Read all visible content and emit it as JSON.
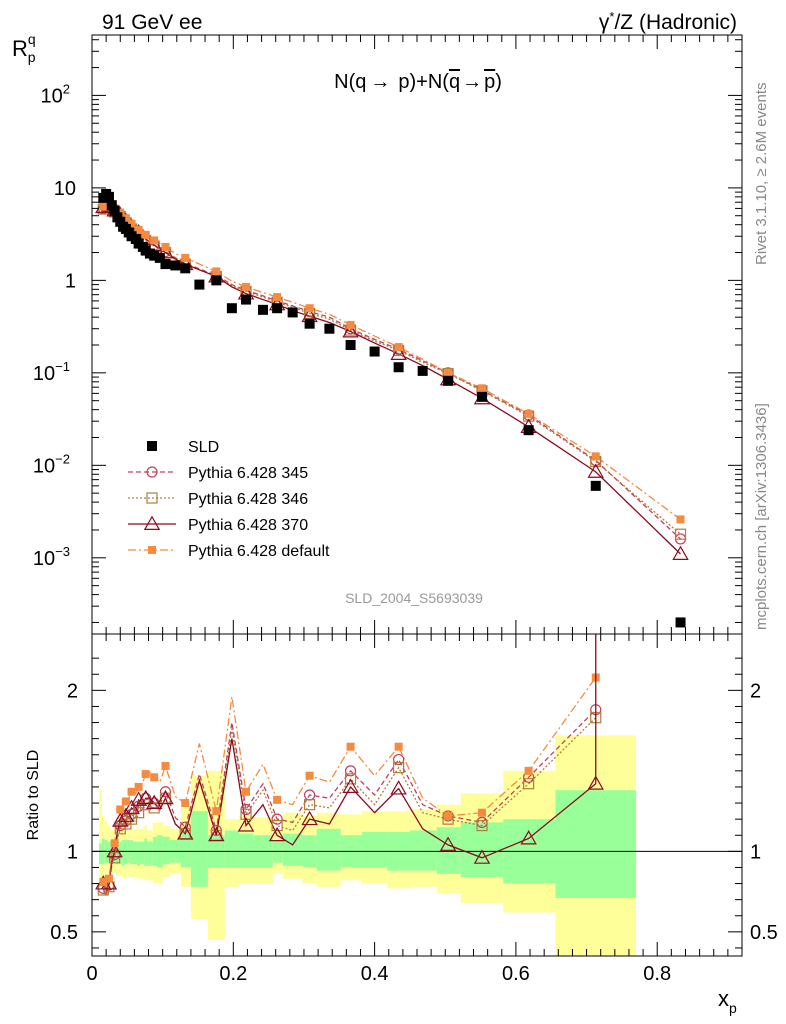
{
  "header": {
    "left": "91 GeV ee",
    "right_gamma": "γ",
    "right_star": "*",
    "right_rest": "/Z (Hadronic)"
  },
  "side_labels": {
    "rivet": "Rivet 3.1.10, ≥ 2.6M events",
    "mcplots": "mcplots.cern.ch [arXiv:1306.3436]"
  },
  "chart_data": [
    {
      "type": "scatter",
      "title": "N(q → p)+N(q̄ → p̄)",
      "title_parts": {
        "a": "N(q",
        "arrow1": "→",
        "b": "p)+N(",
        "qbar": "q",
        "arrow2": "→",
        "pbar": "p",
        "close": ")"
      },
      "ylabel_main": "R",
      "ylabel_sup": "q",
      "ylabel_sub": "p",
      "xlabel_main": "x",
      "xlabel_sub": "p",
      "yscale": "log",
      "ylim": [
        0.00015,
        450
      ],
      "xlim": [
        0,
        0.92
      ],
      "y_tick_labels": [
        {
          "value": 100,
          "base": "10",
          "exp": "2"
        },
        {
          "value": 10,
          "base": "10",
          "exp": ""
        },
        {
          "value": 1,
          "base": "1",
          "exp": ""
        },
        {
          "value": 0.1,
          "base": "10",
          "exp": "−1"
        },
        {
          "value": 0.01,
          "base": "10",
          "exp": "−2"
        },
        {
          "value": 0.001,
          "base": "10",
          "exp": "−3"
        }
      ],
      "watermark": "SLD_2004_S5693039",
      "legend": [
        "SLD",
        "Pythia 6.428 345",
        "Pythia 6.428 346",
        "Pythia 6.428 370",
        "Pythia 6.428 default"
      ],
      "x": [
        0.016,
        0.02,
        0.024,
        0.028,
        0.032,
        0.036,
        0.04,
        0.044,
        0.048,
        0.052,
        0.056,
        0.062,
        0.066,
        0.072,
        0.076,
        0.082,
        0.088,
        0.096,
        0.104,
        0.118,
        0.132,
        0.152,
        0.176,
        0.198,
        0.218,
        0.242,
        0.262,
        0.284,
        0.308,
        0.336,
        0.366,
        0.4,
        0.434,
        0.468,
        0.504,
        0.552,
        0.618,
        0.713,
        0.833
      ],
      "series": [
        {
          "name": "SLD",
          "values": [
            7.8,
            8.6,
            8.0,
            6.5,
            5.7,
            4.8,
            4.3,
            3.8,
            3.6,
            3.3,
            3.0,
            2.8,
            2.5,
            2.3,
            2.1,
            1.95,
            1.85,
            1.75,
            1.5,
            1.45,
            1.35,
            0.9,
            1.0,
            0.5,
            0.62,
            0.48,
            0.5,
            0.45,
            0.34,
            0.3,
            0.2,
            0.17,
            0.115,
            0.105,
            0.082,
            0.055,
            0.024,
            0.006,
            0.0002
          ]
        },
        {
          "name": "Pythia 6.428 345",
          "values": [
            6.0,
            6.3,
            6.3,
            6.0,
            5.6,
            5.3,
            5.0,
            4.6,
            4.3,
            4.0,
            3.7,
            3.4,
            3.2,
            3.0,
            2.8,
            2.6,
            2.4,
            2.25,
            2.05,
            1.75,
            1.55,
            1.33,
            1.13,
            0.9,
            0.78,
            0.68,
            0.6,
            0.53,
            0.46,
            0.4,
            0.3,
            0.23,
            0.18,
            0.135,
            0.1,
            0.065,
            0.035,
            0.0113,
            0.0016
          ]
        },
        {
          "name": "Pythia 6.428 346",
          "values": [
            5.9,
            6.2,
            6.2,
            5.9,
            5.5,
            5.2,
            4.9,
            4.5,
            4.2,
            3.9,
            3.6,
            3.3,
            3.1,
            2.9,
            2.7,
            2.5,
            2.35,
            2.2,
            2.0,
            1.7,
            1.5,
            1.3,
            1.1,
            0.88,
            0.76,
            0.66,
            0.58,
            0.51,
            0.44,
            0.38,
            0.29,
            0.22,
            0.175,
            0.13,
            0.098,
            0.064,
            0.034,
            0.011,
            0.0018
          ]
        },
        {
          "name": "Pythia 6.428 370",
          "values": [
            6.2,
            6.5,
            6.4,
            6.1,
            5.7,
            5.4,
            5.1,
            4.7,
            4.4,
            4.1,
            3.8,
            3.5,
            3.3,
            3.0,
            2.8,
            2.6,
            2.4,
            2.2,
            2.0,
            1.7,
            1.5,
            1.3,
            1.1,
            0.85,
            0.72,
            0.62,
            0.55,
            0.47,
            0.41,
            0.35,
            0.28,
            0.21,
            0.16,
            0.12,
            0.085,
            0.053,
            0.026,
            0.0085,
            0.0011
          ]
        },
        {
          "name": "Pythia 6.428 default",
          "values": [
            6.3,
            6.7,
            6.6,
            6.4,
            6.0,
            5.7,
            5.4,
            5.0,
            4.7,
            4.4,
            4.1,
            3.8,
            3.5,
            3.3,
            3.1,
            2.9,
            2.7,
            2.5,
            2.3,
            1.95,
            1.75,
            1.5,
            1.25,
            0.98,
            0.85,
            0.74,
            0.66,
            0.58,
            0.5,
            0.43,
            0.33,
            0.25,
            0.19,
            0.14,
            0.1,
            0.068,
            0.036,
            0.0125,
            0.0026
          ]
        }
      ]
    },
    {
      "type": "line",
      "ylabel": "Ratio to SLD",
      "xlim": [
        0,
        0.92
      ],
      "ylim": [
        0.35,
        2.35
      ],
      "y_ticks": [
        0.5,
        1,
        2
      ],
      "y_tick_labels": [
        "0.5",
        "1",
        "2"
      ],
      "x_ticks": [
        0,
        0.2,
        0.4,
        0.6,
        0.8
      ],
      "x_tick_labels": [
        "0",
        "0.2",
        "0.4",
        "0.6",
        "0.8"
      ],
      "band_edges": [
        0.01,
        0.014,
        0.018,
        0.022,
        0.026,
        0.03,
        0.034,
        0.038,
        0.042,
        0.046,
        0.05,
        0.054,
        0.058,
        0.064,
        0.068,
        0.074,
        0.078,
        0.086,
        0.092,
        0.1,
        0.11,
        0.126,
        0.14,
        0.164,
        0.188,
        0.208,
        0.228,
        0.256,
        0.27,
        0.298,
        0.318,
        0.352,
        0.382,
        0.418,
        0.45,
        0.488,
        0.522,
        0.582,
        0.656,
        0.77
      ],
      "band_inner": [
        [
          0.92,
          1.05
        ],
        [
          0.92,
          1.08
        ],
        [
          0.93,
          1.07
        ],
        [
          0.93,
          1.06
        ],
        [
          0.92,
          1.06
        ],
        [
          0.93,
          1.05
        ],
        [
          0.92,
          1.08
        ],
        [
          0.92,
          1.06
        ],
        [
          0.91,
          1.07
        ],
        [
          0.92,
          1.07
        ],
        [
          0.93,
          1.07
        ],
        [
          0.92,
          1.07
        ],
        [
          0.92,
          1.06
        ],
        [
          0.91,
          1.06
        ],
        [
          0.92,
          1.06
        ],
        [
          0.91,
          1.08
        ],
        [
          0.91,
          1.06
        ],
        [
          0.91,
          1.09
        ],
        [
          0.9,
          1.1
        ],
        [
          0.92,
          1.09
        ],
        [
          0.93,
          1.07
        ],
        [
          0.9,
          1.13
        ],
        [
          0.78,
          1.25
        ],
        [
          0.9,
          1.1
        ],
        [
          0.9,
          1.13
        ],
        [
          0.9,
          1.11
        ],
        [
          0.9,
          1.1
        ],
        [
          0.93,
          1.07
        ],
        [
          0.91,
          1.11
        ],
        [
          0.9,
          1.1
        ],
        [
          0.88,
          1.14
        ],
        [
          0.9,
          1.1
        ],
        [
          0.9,
          1.12
        ],
        [
          0.88,
          1.12
        ],
        [
          0.88,
          1.13
        ],
        [
          0.86,
          1.15
        ],
        [
          0.84,
          1.18
        ],
        [
          0.8,
          1.2
        ],
        [
          0.71,
          1.38
        ]
      ],
      "band_outer": [
        [
          0.83,
          1.38
        ],
        [
          0.84,
          1.22
        ],
        [
          0.85,
          1.19
        ],
        [
          0.87,
          1.16
        ],
        [
          0.86,
          1.14
        ],
        [
          0.87,
          1.13
        ],
        [
          0.85,
          1.14
        ],
        [
          0.85,
          1.13
        ],
        [
          0.84,
          1.16
        ],
        [
          0.83,
          1.13
        ],
        [
          0.85,
          1.13
        ],
        [
          0.84,
          1.14
        ],
        [
          0.84,
          1.14
        ],
        [
          0.83,
          1.15
        ],
        [
          0.83,
          1.14
        ],
        [
          0.82,
          1.16
        ],
        [
          0.82,
          1.13
        ],
        [
          0.8,
          1.18
        ],
        [
          0.8,
          1.18
        ],
        [
          0.84,
          1.16
        ],
        [
          0.86,
          1.14
        ],
        [
          0.78,
          1.28
        ],
        [
          0.58,
          1.47
        ],
        [
          0.45,
          1.5
        ],
        [
          0.78,
          1.2
        ],
        [
          0.8,
          1.22
        ],
        [
          0.8,
          1.21
        ],
        [
          0.86,
          1.13
        ],
        [
          0.83,
          1.24
        ],
        [
          0.8,
          1.22
        ],
        [
          0.78,
          1.24
        ],
        [
          0.82,
          1.23
        ],
        [
          0.8,
          1.25
        ],
        [
          0.77,
          1.25
        ],
        [
          0.78,
          1.26
        ],
        [
          0.74,
          1.29
        ],
        [
          0.68,
          1.36
        ],
        [
          0.62,
          1.5
        ],
        [
          0.35,
          1.72
        ]
      ],
      "ratio_x": [
        0.016,
        0.02,
        0.024,
        0.028,
        0.032,
        0.036,
        0.04,
        0.044,
        0.048,
        0.052,
        0.056,
        0.062,
        0.066,
        0.072,
        0.076,
        0.082,
        0.088,
        0.096,
        0.104,
        0.118,
        0.132,
        0.152,
        0.176,
        0.198,
        0.218,
        0.242,
        0.262,
        0.284,
        0.308,
        0.336,
        0.366,
        0.4,
        0.434,
        0.468,
        0.504,
        0.552,
        0.618,
        0.713
      ],
      "series": [
        {
          "name": "Pythia 6.428 345",
          "values": [
            0.77,
            0.73,
            0.79,
            0.92,
            0.98,
            1.1,
            1.16,
            1.21,
            1.19,
            1.21,
            1.23,
            1.21,
            1.28,
            1.3,
            1.33,
            1.33,
            1.3,
            1.29,
            1.37,
            1.21,
            1.15,
            1.48,
            1.13,
            1.8,
            1.26,
            1.42,
            1.2,
            1.18,
            1.35,
            1.33,
            1.5,
            1.35,
            1.57,
            1.29,
            1.22,
            1.18,
            1.46,
            1.88
          ]
        },
        {
          "name": "Pythia 6.428 346",
          "values": [
            0.76,
            0.72,
            0.78,
            0.91,
            0.96,
            1.08,
            1.14,
            1.18,
            1.17,
            1.18,
            1.2,
            1.18,
            1.24,
            1.26,
            1.29,
            1.28,
            1.27,
            1.26,
            1.33,
            1.17,
            1.11,
            1.44,
            1.1,
            1.76,
            1.23,
            1.38,
            1.16,
            1.13,
            1.29,
            1.27,
            1.45,
            1.29,
            1.52,
            1.24,
            1.2,
            1.16,
            1.42,
            1.83
          ]
        },
        {
          "name": "Pythia 6.428 370",
          "values": [
            0.8,
            0.76,
            0.8,
            0.94,
            1.0,
            1.13,
            1.19,
            1.24,
            1.22,
            1.24,
            1.27,
            1.25,
            1.32,
            1.3,
            1.33,
            1.33,
            1.3,
            1.26,
            1.33,
            1.17,
            1.11,
            1.44,
            1.1,
            1.7,
            1.16,
            1.29,
            1.1,
            1.04,
            1.2,
            1.17,
            1.4,
            1.24,
            1.39,
            1.14,
            1.04,
            0.96,
            1.08,
            1.42
          ]
        },
        {
          "name": "Pythia 6.428 default",
          "values": [
            0.81,
            0.78,
            0.83,
            0.98,
            1.05,
            1.19,
            1.26,
            1.32,
            1.31,
            1.33,
            1.37,
            1.36,
            1.4,
            1.43,
            1.48,
            1.49,
            1.46,
            1.43,
            1.53,
            1.34,
            1.3,
            1.67,
            1.25,
            1.96,
            1.37,
            1.54,
            1.32,
            1.29,
            1.47,
            1.43,
            1.65,
            1.47,
            1.65,
            1.33,
            1.22,
            1.24,
            1.5,
            2.08
          ]
        }
      ],
      "error_bar_x": 0.713,
      "error_bar_range": [
        1.42,
        2.35
      ],
      "reference_line": 1
    }
  ],
  "colors": {
    "sld": "#000000",
    "p345": "#c0405a",
    "p346": "#b07d3a",
    "p370": "#8b0a1e",
    "pdefault": "#f58b3f",
    "band_inner": "#99ff99",
    "band_outer": "#ffff99",
    "watermark": "#999999",
    "side_label": "#888888"
  }
}
